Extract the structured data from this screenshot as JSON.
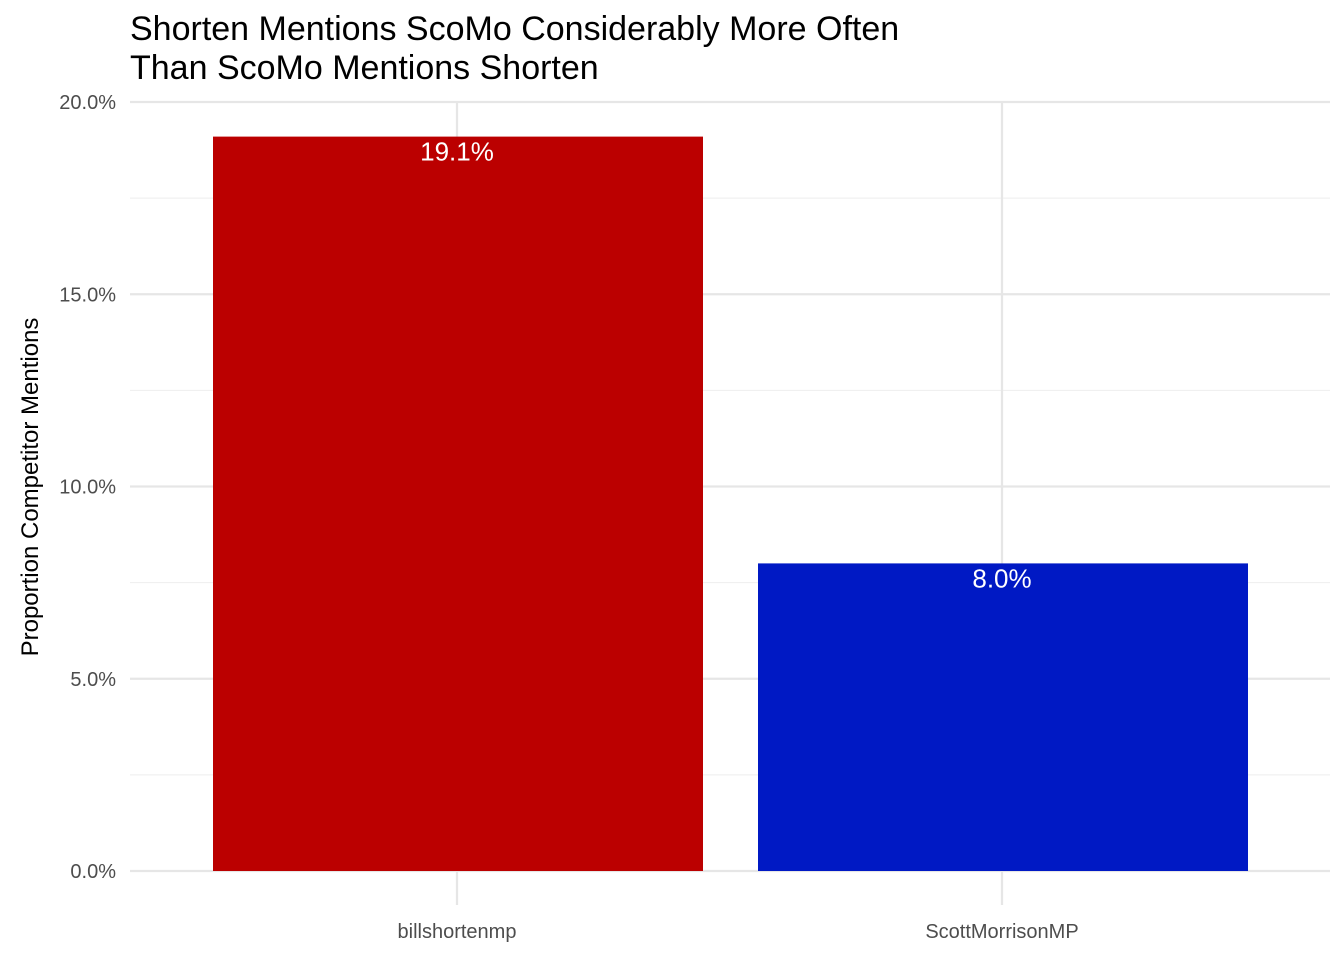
{
  "chart_data": {
    "type": "bar",
    "title_lines": [
      "Shorten Mentions ScoMo Considerably More Often",
      "Than ScoMo Mentions Shorten"
    ],
    "xlabel": "",
    "ylabel": "Proportion Competitor Mentions",
    "categories": [
      "billshortenmp",
      "ScottMorrisonMP"
    ],
    "values": [
      0.191,
      0.08
    ],
    "bar_labels": [
      "19.1%",
      "8.0%"
    ],
    "colors": [
      "#bb0000",
      "#0019c4"
    ],
    "ylim": [
      0,
      0.2
    ],
    "y_ticks": [
      0,
      0.05,
      0.1,
      0.15,
      0.2
    ],
    "y_tick_labels": [
      "0.0%",
      "5.0%",
      "10.0%",
      "15.0%",
      "20.0%"
    ],
    "grid": true,
    "legend": "none"
  }
}
